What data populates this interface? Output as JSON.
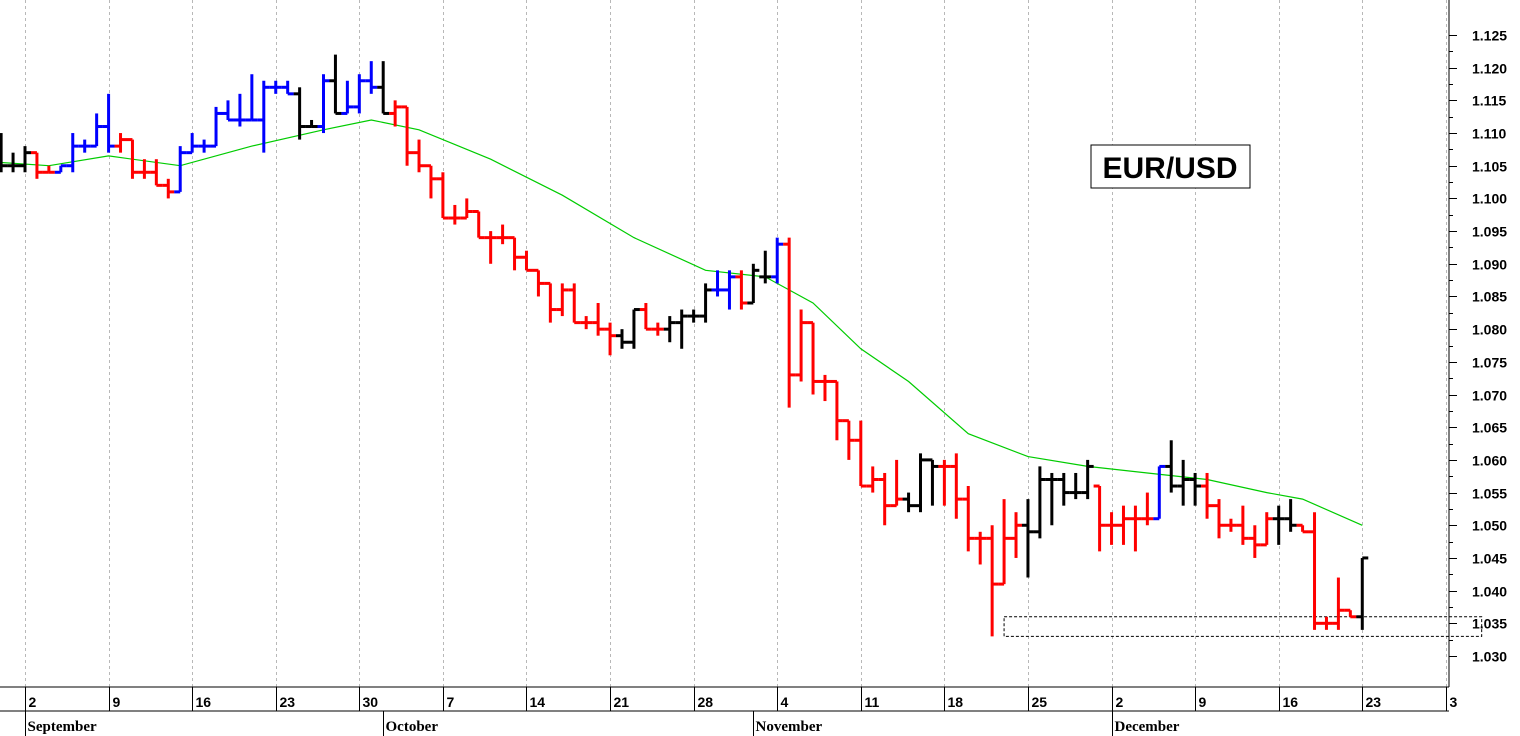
{
  "chart_data": {
    "type": "ohlc",
    "title": "EUR/USD",
    "ylim": [
      1.025,
      1.13
    ],
    "y_ticks": [
      "1.030",
      "1.035",
      "1.040",
      "1.045",
      "1.050",
      "1.055",
      "1.060",
      "1.065",
      "1.070",
      "1.075",
      "1.080",
      "1.085",
      "1.090",
      "1.095",
      "1.100",
      "1.105",
      "1.110",
      "1.115",
      "1.120",
      "1.125"
    ],
    "x_tick_labels": [
      {
        "label": "2",
        "day": 2
      },
      {
        "label": "9",
        "day": 9
      },
      {
        "label": "16",
        "day": 16
      },
      {
        "label": "23",
        "day": 23
      },
      {
        "label": "30",
        "day": 30
      },
      {
        "label": "7",
        "day": 37
      },
      {
        "label": "14",
        "day": 44
      },
      {
        "label": "21",
        "day": 51
      },
      {
        "label": "28",
        "day": 58
      },
      {
        "label": "4",
        "day": 65
      },
      {
        "label": "11",
        "day": 72
      },
      {
        "label": "18",
        "day": 79
      },
      {
        "label": "25",
        "day": 86
      },
      {
        "label": "2",
        "day": 93
      },
      {
        "label": "9",
        "day": 100
      },
      {
        "label": "16",
        "day": 107
      },
      {
        "label": "23",
        "day": 114
      },
      {
        "label": "3",
        "day": 121
      }
    ],
    "month_labels": [
      {
        "label": "September",
        "day": 2
      },
      {
        "label": "October",
        "day": 32
      },
      {
        "label": "November",
        "day": 63
      },
      {
        "label": "December",
        "day": 93
      }
    ],
    "colors": {
      "up": "#0000ff",
      "down": "#ff0000",
      "neutral": "#000000",
      "ma": "#00cc00"
    },
    "bars": [
      {
        "day": 0,
        "o": 1.108,
        "h": 1.11,
        "l": 1.104,
        "c": 1.105,
        "color": "neutral"
      },
      {
        "day": 1,
        "o": 1.105,
        "h": 1.107,
        "l": 1.104,
        "c": 1.105,
        "color": "neutral"
      },
      {
        "day": 2,
        "o": 1.105,
        "h": 1.108,
        "l": 1.104,
        "c": 1.107,
        "color": "neutral"
      },
      {
        "day": 3,
        "o": 1.107,
        "h": 1.107,
        "l": 1.103,
        "c": 1.104,
        "color": "down"
      },
      {
        "day": 4,
        "o": 1.104,
        "h": 1.105,
        "l": 1.104,
        "c": 1.104,
        "color": "down"
      },
      {
        "day": 5,
        "o": 1.104,
        "h": 1.105,
        "l": 1.104,
        "c": 1.105,
        "color": "up"
      },
      {
        "day": 6,
        "o": 1.105,
        "h": 1.11,
        "l": 1.104,
        "c": 1.108,
        "color": "up"
      },
      {
        "day": 7,
        "o": 1.108,
        "h": 1.109,
        "l": 1.107,
        "c": 1.108,
        "color": "up"
      },
      {
        "day": 8,
        "o": 1.108,
        "h": 1.113,
        "l": 1.108,
        "c": 1.111,
        "color": "up"
      },
      {
        "day": 9,
        "o": 1.111,
        "h": 1.116,
        "l": 1.107,
        "c": 1.108,
        "color": "up"
      },
      {
        "day": 10,
        "o": 1.108,
        "h": 1.11,
        "l": 1.107,
        "c": 1.109,
        "color": "down"
      },
      {
        "day": 11,
        "o": 1.109,
        "h": 1.109,
        "l": 1.103,
        "c": 1.104,
        "color": "down"
      },
      {
        "day": 12,
        "o": 1.104,
        "h": 1.106,
        "l": 1.103,
        "c": 1.104,
        "color": "down"
      },
      {
        "day": 13,
        "o": 1.104,
        "h": 1.106,
        "l": 1.102,
        "c": 1.102,
        "color": "down"
      },
      {
        "day": 14,
        "o": 1.102,
        "h": 1.103,
        "l": 1.1,
        "c": 1.101,
        "color": "down"
      },
      {
        "day": 15,
        "o": 1.101,
        "h": 1.108,
        "l": 1.101,
        "c": 1.107,
        "color": "up"
      },
      {
        "day": 16,
        "o": 1.107,
        "h": 1.11,
        "l": 1.107,
        "c": 1.108,
        "color": "up"
      },
      {
        "day": 17,
        "o": 1.108,
        "h": 1.109,
        "l": 1.107,
        "c": 1.108,
        "color": "up"
      },
      {
        "day": 18,
        "o": 1.108,
        "h": 1.114,
        "l": 1.108,
        "c": 1.113,
        "color": "up"
      },
      {
        "day": 19,
        "o": 1.113,
        "h": 1.115,
        "l": 1.112,
        "c": 1.112,
        "color": "up"
      },
      {
        "day": 20,
        "o": 1.112,
        "h": 1.116,
        "l": 1.111,
        "c": 1.112,
        "color": "up"
      },
      {
        "day": 21,
        "o": 1.112,
        "h": 1.119,
        "l": 1.112,
        "c": 1.112,
        "color": "up"
      },
      {
        "day": 22,
        "o": 1.112,
        "h": 1.118,
        "l": 1.107,
        "c": 1.117,
        "color": "up"
      },
      {
        "day": 23,
        "o": 1.117,
        "h": 1.118,
        "l": 1.116,
        "c": 1.117,
        "color": "up"
      },
      {
        "day": 24,
        "o": 1.117,
        "h": 1.118,
        "l": 1.116,
        "c": 1.116,
        "color": "up"
      },
      {
        "day": 25,
        "o": 1.116,
        "h": 1.117,
        "l": 1.109,
        "c": 1.111,
        "color": "neutral"
      },
      {
        "day": 26,
        "o": 1.111,
        "h": 1.112,
        "l": 1.111,
        "c": 1.111,
        "color": "neutral"
      },
      {
        "day": 27,
        "o": 1.111,
        "h": 1.119,
        "l": 1.11,
        "c": 1.118,
        "color": "up"
      },
      {
        "day": 28,
        "o": 1.118,
        "h": 1.122,
        "l": 1.113,
        "c": 1.113,
        "color": "neutral"
      },
      {
        "day": 29,
        "o": 1.113,
        "h": 1.118,
        "l": 1.113,
        "c": 1.114,
        "color": "up"
      },
      {
        "day": 30,
        "o": 1.114,
        "h": 1.119,
        "l": 1.113,
        "c": 1.118,
        "color": "up"
      },
      {
        "day": 31,
        "o": 1.118,
        "h": 1.121,
        "l": 1.116,
        "c": 1.117,
        "color": "up"
      },
      {
        "day": 32,
        "o": 1.117,
        "h": 1.121,
        "l": 1.113,
        "c": 1.113,
        "color": "neutral"
      },
      {
        "day": 33,
        "o": 1.113,
        "h": 1.115,
        "l": 1.111,
        "c": 1.114,
        "color": "down"
      },
      {
        "day": 34,
        "o": 1.114,
        "h": 1.114,
        "l": 1.105,
        "c": 1.107,
        "color": "down"
      },
      {
        "day": 35,
        "o": 1.107,
        "h": 1.109,
        "l": 1.104,
        "c": 1.105,
        "color": "down"
      },
      {
        "day": 36,
        "o": 1.105,
        "h": 1.105,
        "l": 1.1,
        "c": 1.103,
        "color": "down"
      },
      {
        "day": 37,
        "o": 1.103,
        "h": 1.104,
        "l": 1.097,
        "c": 1.097,
        "color": "down"
      },
      {
        "day": 38,
        "o": 1.097,
        "h": 1.099,
        "l": 1.096,
        "c": 1.097,
        "color": "down"
      },
      {
        "day": 39,
        "o": 1.097,
        "h": 1.1,
        "l": 1.097,
        "c": 1.098,
        "color": "down"
      },
      {
        "day": 40,
        "o": 1.098,
        "h": 1.098,
        "l": 1.094,
        "c": 1.094,
        "color": "down"
      },
      {
        "day": 41,
        "o": 1.094,
        "h": 1.095,
        "l": 1.09,
        "c": 1.094,
        "color": "down"
      },
      {
        "day": 42,
        "o": 1.094,
        "h": 1.096,
        "l": 1.093,
        "c": 1.094,
        "color": "down"
      },
      {
        "day": 43,
        "o": 1.094,
        "h": 1.094,
        "l": 1.089,
        "c": 1.091,
        "color": "down"
      },
      {
        "day": 44,
        "o": 1.091,
        "h": 1.092,
        "l": 1.089,
        "c": 1.089,
        "color": "down"
      },
      {
        "day": 45,
        "o": 1.089,
        "h": 1.089,
        "l": 1.085,
        "c": 1.087,
        "color": "down"
      },
      {
        "day": 46,
        "o": 1.087,
        "h": 1.087,
        "l": 1.081,
        "c": 1.083,
        "color": "down"
      },
      {
        "day": 47,
        "o": 1.083,
        "h": 1.087,
        "l": 1.082,
        "c": 1.086,
        "color": "down"
      },
      {
        "day": 48,
        "o": 1.086,
        "h": 1.087,
        "l": 1.081,
        "c": 1.081,
        "color": "down"
      },
      {
        "day": 49,
        "o": 1.081,
        "h": 1.082,
        "l": 1.08,
        "c": 1.081,
        "color": "down"
      },
      {
        "day": 50,
        "o": 1.081,
        "h": 1.084,
        "l": 1.079,
        "c": 1.08,
        "color": "down"
      },
      {
        "day": 51,
        "o": 1.08,
        "h": 1.081,
        "l": 1.076,
        "c": 1.079,
        "color": "down"
      },
      {
        "day": 52,
        "o": 1.079,
        "h": 1.08,
        "l": 1.077,
        "c": 1.078,
        "color": "neutral"
      },
      {
        "day": 53,
        "o": 1.078,
        "h": 1.083,
        "l": 1.077,
        "c": 1.083,
        "color": "neutral"
      },
      {
        "day": 54,
        "o": 1.083,
        "h": 1.084,
        "l": 1.08,
        "c": 1.08,
        "color": "down"
      },
      {
        "day": 55,
        "o": 1.08,
        "h": 1.081,
        "l": 1.079,
        "c": 1.08,
        "color": "down"
      },
      {
        "day": 56,
        "o": 1.08,
        "h": 1.082,
        "l": 1.078,
        "c": 1.081,
        "color": "neutral"
      },
      {
        "day": 57,
        "o": 1.081,
        "h": 1.083,
        "l": 1.077,
        "c": 1.082,
        "color": "neutral"
      },
      {
        "day": 58,
        "o": 1.082,
        "h": 1.083,
        "l": 1.081,
        "c": 1.082,
        "color": "neutral"
      },
      {
        "day": 59,
        "o": 1.082,
        "h": 1.087,
        "l": 1.081,
        "c": 1.086,
        "color": "neutral"
      },
      {
        "day": 60,
        "o": 1.086,
        "h": 1.089,
        "l": 1.085,
        "c": 1.086,
        "color": "up"
      },
      {
        "day": 61,
        "o": 1.086,
        "h": 1.089,
        "l": 1.083,
        "c": 1.088,
        "color": "up"
      },
      {
        "day": 62,
        "o": 1.088,
        "h": 1.089,
        "l": 1.083,
        "c": 1.084,
        "color": "down"
      },
      {
        "day": 63,
        "o": 1.084,
        "h": 1.09,
        "l": 1.084,
        "c": 1.089,
        "color": "neutral"
      },
      {
        "day": 64,
        "o": 1.088,
        "h": 1.092,
        "l": 1.087,
        "c": 1.088,
        "color": "neutral"
      },
      {
        "day": 65,
        "o": 1.088,
        "h": 1.094,
        "l": 1.087,
        "c": 1.093,
        "color": "up"
      },
      {
        "day": 66,
        "o": 1.093,
        "h": 1.094,
        "l": 1.068,
        "c": 1.073,
        "color": "down"
      },
      {
        "day": 67,
        "o": 1.073,
        "h": 1.083,
        "l": 1.072,
        "c": 1.081,
        "color": "down"
      },
      {
        "day": 68,
        "o": 1.081,
        "h": 1.081,
        "l": 1.07,
        "c": 1.072,
        "color": "down"
      },
      {
        "day": 69,
        "o": 1.072,
        "h": 1.073,
        "l": 1.069,
        "c": 1.072,
        "color": "down"
      },
      {
        "day": 70,
        "o": 1.072,
        "h": 1.072,
        "l": 1.063,
        "c": 1.066,
        "color": "down"
      },
      {
        "day": 71,
        "o": 1.066,
        "h": 1.066,
        "l": 1.06,
        "c": 1.063,
        "color": "down"
      },
      {
        "day": 72,
        "o": 1.063,
        "h": 1.066,
        "l": 1.056,
        "c": 1.056,
        "color": "down"
      },
      {
        "day": 73,
        "o": 1.056,
        "h": 1.059,
        "l": 1.055,
        "c": 1.057,
        "color": "down"
      },
      {
        "day": 74,
        "o": 1.057,
        "h": 1.058,
        "l": 1.05,
        "c": 1.053,
        "color": "down"
      },
      {
        "day": 75,
        "o": 1.053,
        "h": 1.06,
        "l": 1.053,
        "c": 1.054,
        "color": "down"
      },
      {
        "day": 76,
        "o": 1.054,
        "h": 1.055,
        "l": 1.052,
        "c": 1.053,
        "color": "neutral"
      },
      {
        "day": 77,
        "o": 1.053,
        "h": 1.061,
        "l": 1.052,
        "c": 1.06,
        "color": "neutral"
      },
      {
        "day": 78,
        "o": 1.06,
        "h": 1.06,
        "l": 1.053,
        "c": 1.059,
        "color": "neutral"
      },
      {
        "day": 79,
        "o": 1.059,
        "h": 1.06,
        "l": 1.053,
        "c": 1.059,
        "color": "down"
      },
      {
        "day": 80,
        "o": 1.059,
        "h": 1.061,
        "l": 1.051,
        "c": 1.054,
        "color": "down"
      },
      {
        "day": 81,
        "o": 1.054,
        "h": 1.056,
        "l": 1.046,
        "c": 1.048,
        "color": "down"
      },
      {
        "day": 82,
        "o": 1.048,
        "h": 1.049,
        "l": 1.044,
        "c": 1.048,
        "color": "down"
      },
      {
        "day": 83,
        "o": 1.048,
        "h": 1.05,
        "l": 1.033,
        "c": 1.041,
        "color": "down"
      },
      {
        "day": 84,
        "o": 1.041,
        "h": 1.054,
        "l": 1.041,
        "c": 1.048,
        "color": "down"
      },
      {
        "day": 85,
        "o": 1.048,
        "h": 1.052,
        "l": 1.045,
        "c": 1.05,
        "color": "down"
      },
      {
        "day": 86,
        "o": 1.05,
        "h": 1.054,
        "l": 1.042,
        "c": 1.049,
        "color": "neutral"
      },
      {
        "day": 87,
        "o": 1.049,
        "h": 1.059,
        "l": 1.048,
        "c": 1.057,
        "color": "neutral"
      },
      {
        "day": 88,
        "o": 1.057,
        "h": 1.058,
        "l": 1.05,
        "c": 1.057,
        "color": "neutral"
      },
      {
        "day": 89,
        "o": 1.057,
        "h": 1.058,
        "l": 1.053,
        "c": 1.055,
        "color": "neutral"
      },
      {
        "day": 90,
        "o": 1.055,
        "h": 1.058,
        "l": 1.054,
        "c": 1.055,
        "color": "neutral"
      },
      {
        "day": 91,
        "o": 1.055,
        "h": 1.06,
        "l": 1.054,
        "c": 1.059,
        "color": "neutral"
      },
      {
        "day": 92,
        "o": 1.056,
        "h": 1.056,
        "l": 1.046,
        "c": 1.05,
        "color": "down"
      },
      {
        "day": 93,
        "o": 1.05,
        "h": 1.052,
        "l": 1.047,
        "c": 1.05,
        "color": "down"
      },
      {
        "day": 94,
        "o": 1.05,
        "h": 1.053,
        "l": 1.047,
        "c": 1.051,
        "color": "down"
      },
      {
        "day": 95,
        "o": 1.051,
        "h": 1.053,
        "l": 1.046,
        "c": 1.051,
        "color": "down"
      },
      {
        "day": 96,
        "o": 1.051,
        "h": 1.055,
        "l": 1.05,
        "c": 1.051,
        "color": "down"
      },
      {
        "day": 97,
        "o": 1.051,
        "h": 1.059,
        "l": 1.051,
        "c": 1.059,
        "color": "up"
      },
      {
        "day": 98,
        "o": 1.059,
        "h": 1.063,
        "l": 1.055,
        "c": 1.056,
        "color": "neutral"
      },
      {
        "day": 99,
        "o": 1.056,
        "h": 1.06,
        "l": 1.053,
        "c": 1.057,
        "color": "neutral"
      },
      {
        "day": 100,
        "o": 1.057,
        "h": 1.058,
        "l": 1.053,
        "c": 1.056,
        "color": "neutral"
      },
      {
        "day": 101,
        "o": 1.056,
        "h": 1.058,
        "l": 1.051,
        "c": 1.053,
        "color": "down"
      },
      {
        "day": 102,
        "o": 1.053,
        "h": 1.054,
        "l": 1.048,
        "c": 1.05,
        "color": "down"
      },
      {
        "day": 103,
        "o": 1.05,
        "h": 1.051,
        "l": 1.049,
        "c": 1.05,
        "color": "down"
      },
      {
        "day": 104,
        "o": 1.05,
        "h": 1.053,
        "l": 1.047,
        "c": 1.048,
        "color": "down"
      },
      {
        "day": 105,
        "o": 1.048,
        "h": 1.05,
        "l": 1.045,
        "c": 1.047,
        "color": "down"
      },
      {
        "day": 106,
        "o": 1.047,
        "h": 1.052,
        "l": 1.047,
        "c": 1.051,
        "color": "down"
      },
      {
        "day": 107,
        "o": 1.051,
        "h": 1.053,
        "l": 1.047,
        "c": 1.051,
        "color": "neutral"
      },
      {
        "day": 108,
        "o": 1.051,
        "h": 1.054,
        "l": 1.049,
        "c": 1.05,
        "color": "neutral"
      },
      {
        "day": 109,
        "o": 1.05,
        "h": 1.05,
        "l": 1.049,
        "c": 1.049,
        "color": "down"
      },
      {
        "day": 110,
        "o": 1.049,
        "h": 1.052,
        "l": 1.034,
        "c": 1.035,
        "color": "down"
      },
      {
        "day": 111,
        "o": 1.035,
        "h": 1.036,
        "l": 1.034,
        "c": 1.035,
        "color": "down"
      },
      {
        "day": 112,
        "o": 1.035,
        "h": 1.042,
        "l": 1.034,
        "c": 1.037,
        "color": "down"
      },
      {
        "day": 113,
        "o": 1.037,
        "h": 1.037,
        "l": 1.036,
        "c": 1.036,
        "color": "down"
      },
      {
        "day": 114,
        "o": 1.036,
        "h": 1.045,
        "l": 1.034,
        "c": 1.045,
        "color": "neutral"
      }
    ],
    "moving_average": [
      {
        "day": 0,
        "v": 1.1055
      },
      {
        "day": 4,
        "v": 1.105
      },
      {
        "day": 9,
        "v": 1.1065
      },
      {
        "day": 15,
        "v": 1.105
      },
      {
        "day": 21,
        "v": 1.108
      },
      {
        "day": 27,
        "v": 1.1105
      },
      {
        "day": 31,
        "v": 1.112
      },
      {
        "day": 35,
        "v": 1.1105
      },
      {
        "day": 41,
        "v": 1.106
      },
      {
        "day": 47,
        "v": 1.1005
      },
      {
        "day": 53,
        "v": 1.094
      },
      {
        "day": 59,
        "v": 1.089
      },
      {
        "day": 64,
        "v": 1.088
      },
      {
        "day": 68,
        "v": 1.084
      },
      {
        "day": 72,
        "v": 1.077
      },
      {
        "day": 76,
        "v": 1.072
      },
      {
        "day": 81,
        "v": 1.064
      },
      {
        "day": 86,
        "v": 1.0605
      },
      {
        "day": 91,
        "v": 1.059
      },
      {
        "day": 96,
        "v": 1.058
      },
      {
        "day": 101,
        "v": 1.057
      },
      {
        "day": 106,
        "v": 1.055
      },
      {
        "day": 109,
        "v": 1.054
      },
      {
        "day": 114,
        "v": 1.05
      }
    ],
    "support_box": {
      "day_start": 84,
      "day_end": 124,
      "low": 1.033,
      "high": 1.036
    }
  }
}
